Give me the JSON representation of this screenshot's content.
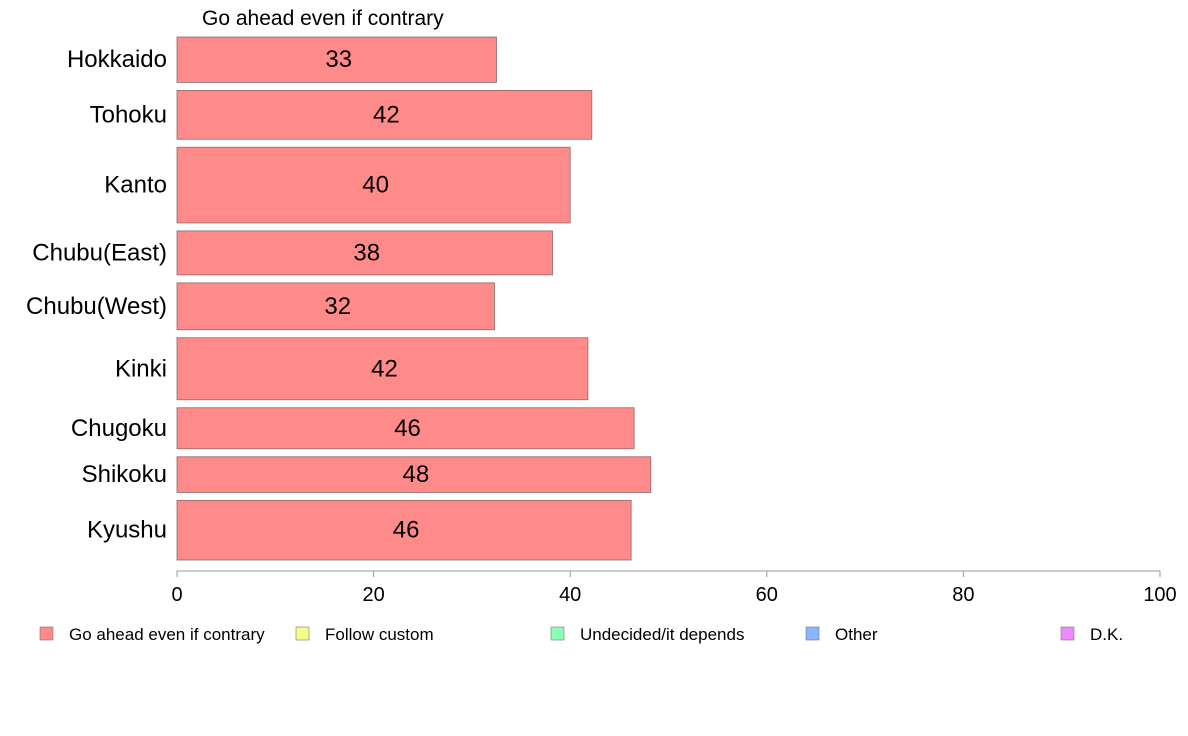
{
  "chart_data": {
    "type": "bar",
    "orientation": "horizontal",
    "title": "Go ahead even if contrary",
    "categories": [
      "Hokkaido",
      "Tohoku",
      "Kanto",
      "Chubu(East)",
      "Chubu(West)",
      "Kinki",
      "Chugoku",
      "Shikoku",
      "Kyushu"
    ],
    "series": [
      {
        "name": "Go ahead even if contrary",
        "color": "#ff8a8a",
        "values": [
          32.5,
          42.2,
          40.0,
          38.2,
          32.3,
          41.8,
          46.5,
          48.2,
          46.2
        ],
        "labels": [
          "33",
          "42",
          "40",
          "38",
          "32",
          "42",
          "46",
          "48",
          "46"
        ]
      }
    ],
    "relative_bar_heights": [
      0.93,
      1.0,
      1.55,
      0.9,
      0.96,
      1.27,
      0.84,
      0.73,
      1.22
    ],
    "xlim": [
      0,
      100
    ],
    "xticks": [
      "0",
      "20",
      "40",
      "60",
      "80",
      "100"
    ],
    "xlabel": "",
    "ylabel": "",
    "grid": false,
    "legend_position": "bottom",
    "legend": [
      {
        "label": "Go ahead even if contrary",
        "color": "#ff8a8a"
      },
      {
        "label": "Follow custom",
        "color": "#f2ff8a"
      },
      {
        "label": "Undecided/it depends",
        "color": "#8affb6"
      },
      {
        "label": "Other",
        "color": "#8ab6ff"
      },
      {
        "label": "D.K.",
        "color": "#ee8aff"
      }
    ]
  }
}
